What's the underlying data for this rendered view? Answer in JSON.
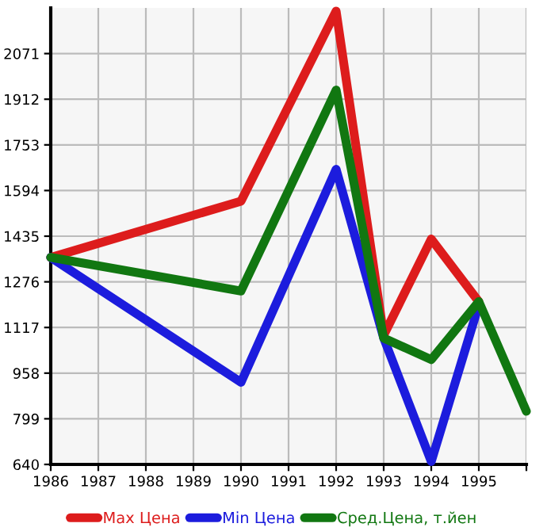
{
  "chart_data": {
    "type": "line",
    "x": [
      1986,
      1990,
      1992,
      1993,
      1994,
      1995,
      1996
    ],
    "series": [
      {
        "name": "Max Цена",
        "color": "#dd1c1c",
        "values": [
          1361,
          1557,
          2219,
          1090,
          1425,
          1207,
          null
        ]
      },
      {
        "name": "Min Цена",
        "color": "#1c1cdd",
        "values": [
          1361,
          926,
          1668,
          1080,
          650,
          1196,
          null
        ]
      },
      {
        "name": "Сред.Цена, т.йен",
        "color": "#117711",
        "values": [
          1361,
          1244,
          1944,
          1080,
          1005,
          1207,
          825
        ]
      }
    ],
    "xlim": [
      1986,
      1996
    ],
    "xticks": [
      1986,
      1987,
      1988,
      1989,
      1990,
      1991,
      1992,
      1993,
      1994,
      1995,
      {
        "value": 1996,
        "label": null
      }
    ],
    "ylim": [
      640,
      2230
    ],
    "yticks": [
      640,
      799,
      958,
      1117,
      1276,
      1435,
      1594,
      1753,
      1912,
      2071
    ],
    "grid": true,
    "legend": "bottom",
    "marker": "none",
    "line_style": "solid"
  }
}
